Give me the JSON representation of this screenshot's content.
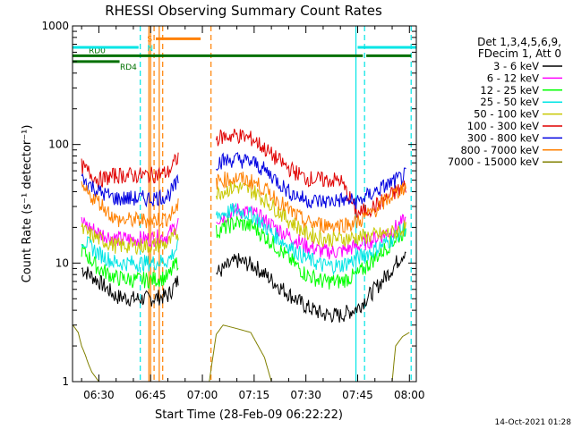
{
  "chart_data": {
    "type": "line",
    "title": "RHESSI Observing Summary Count Rates",
    "xlabel": "Start Time (28-Feb-09 06:22:22)",
    "ylabel": "Count Rate (s⁻¹ detector⁻¹)",
    "y_scale": "log",
    "ylim": [
      1,
      1000
    ],
    "xlim": [
      "06:22:22",
      "08:02:00"
    ],
    "x_ticks": [
      "06:30",
      "06:45",
      "07:00",
      "07:15",
      "07:30",
      "07:45",
      "08:00"
    ],
    "y_ticks": [
      "1",
      "10",
      "100",
      "1000"
    ],
    "timestamp": "14-Oct-2021 01:28",
    "legend": {
      "placement": "right",
      "header": [
        "Det 1,3,4,5,6,9,",
        "FDecim 1, Att 0"
      ]
    },
    "flags": [
      {
        "label": "RD0",
        "color": "#007000",
        "y": 560,
        "intervals": [
          [
            "06:22:22",
            "07:46:30"
          ],
          [
            "07:47:30",
            "08:00:30"
          ]
        ]
      },
      {
        "label": "RD4",
        "color": "#007000",
        "y": 500,
        "intervals": [
          [
            "06:22:22",
            "06:36:00"
          ]
        ]
      },
      {
        "label": "S",
        "color": "#ff8000",
        "y": 780,
        "intervals": [
          [
            "06:46:30",
            "06:59:30"
          ]
        ]
      },
      {
        "label": "N",
        "color": "#00e5e5",
        "y": 660,
        "intervals": [
          [
            "06:22:22",
            "06:41:30"
          ],
          [
            "07:45:00",
            "08:02:00"
          ]
        ]
      }
    ],
    "vertical_markers": [
      {
        "time": "06:42:00",
        "color": "#00e5e5",
        "style": "dashed"
      },
      {
        "time": "06:44:30",
        "color": "#ff8000",
        "style": "solid"
      },
      {
        "time": "06:45:00",
        "color": "#ff8000",
        "style": "solid"
      },
      {
        "time": "06:46:00",
        "color": "#ff8000",
        "style": "dashed"
      },
      {
        "time": "06:47:30",
        "color": "#ff8000",
        "style": "solid"
      },
      {
        "time": "06:48:30",
        "color": "#ff8000",
        "style": "dashed"
      },
      {
        "time": "07:02:30",
        "color": "#ff8000",
        "style": "dashed"
      },
      {
        "time": "07:44:30",
        "color": "#00e5e5",
        "style": "solid"
      },
      {
        "time": "07:47:00",
        "color": "#00e5e5",
        "style": "dashed"
      },
      {
        "time": "08:00:30",
        "color": "#00e5e5",
        "style": "dashed"
      }
    ],
    "series": [
      {
        "name": "3 - 6 keV",
        "color": "#000000",
        "x": [
          "06:25",
          "06:30",
          "06:35",
          "06:40",
          "06:45",
          "06:50",
          "06:53",
          "07:05",
          "07:10",
          "07:15",
          "07:20",
          "07:25",
          "07:30",
          "07:35",
          "07:40",
          "07:45",
          "07:50",
          "07:55",
          "07:59"
        ],
        "y": [
          9,
          7,
          5.2,
          5.0,
          5.0,
          5.3,
          7.2,
          8.5,
          10.5,
          9.5,
          7.2,
          5.5,
          4.3,
          3.7,
          3.6,
          4.2,
          6,
          9,
          13
        ]
      },
      {
        "name": "6 - 12 keV",
        "color": "#ff00ff",
        "x": [
          "06:25",
          "06:30",
          "06:35",
          "06:40",
          "06:45",
          "06:50",
          "06:53",
          "07:05",
          "07:10",
          "07:15",
          "07:20",
          "07:25",
          "07:30",
          "07:35",
          "07:40",
          "07:45",
          "07:50",
          "07:55",
          "07:59"
        ],
        "y": [
          22,
          18,
          16,
          16,
          16,
          17,
          22,
          24,
          28,
          26,
          21,
          17,
          14,
          12.5,
          12.5,
          14,
          16,
          19,
          23
        ]
      },
      {
        "name": "12 - 25 keV",
        "color": "#00ff00",
        "x": [
          "06:25",
          "06:30",
          "06:35",
          "06:40",
          "06:45",
          "06:50",
          "06:53",
          "07:05",
          "07:10",
          "07:15",
          "07:20",
          "07:25",
          "07:30",
          "07:35",
          "07:40",
          "07:45",
          "07:50",
          "07:55",
          "07:59"
        ],
        "y": [
          13,
          9,
          7.5,
          7.2,
          7.2,
          7.6,
          10.5,
          19,
          22,
          20,
          15,
          11,
          8,
          7,
          7,
          8,
          11,
          15,
          19
        ]
      },
      {
        "name": "25 - 50 keV",
        "color": "#00e5e5",
        "x": [
          "06:25",
          "06:30",
          "06:35",
          "06:40",
          "06:45",
          "06:50",
          "06:53",
          "07:05",
          "07:10",
          "07:15",
          "07:20",
          "07:25",
          "07:30",
          "07:35",
          "07:40",
          "07:45",
          "07:50",
          "07:55",
          "07:59"
        ],
        "y": [
          16,
          12,
          10,
          10,
          10,
          10.5,
          14,
          26,
          28,
          25,
          18,
          14,
          11,
          9.5,
          9.5,
          11,
          13,
          16,
          20
        ]
      },
      {
        "name": "50 - 100 keV",
        "color": "#c8c800",
        "x": [
          "06:25",
          "06:30",
          "06:35",
          "06:40",
          "06:45",
          "06:50",
          "06:53",
          "07:05",
          "07:10",
          "07:15",
          "07:20",
          "07:25",
          "07:30",
          "07:35",
          "07:40",
          "07:45",
          "07:50",
          "07:55",
          "07:59"
        ],
        "y": [
          19,
          16,
          14,
          14,
          14,
          14.5,
          18,
          40,
          44,
          40,
          31,
          23,
          18,
          16,
          16,
          16.5,
          17,
          18,
          20
        ]
      },
      {
        "name": "100 - 300 keV",
        "color": "#e00000",
        "x": [
          "06:25",
          "06:30",
          "06:35",
          "06:40",
          "06:45",
          "06:50",
          "06:53",
          "07:05",
          "07:10",
          "07:15",
          "07:20",
          "07:25",
          "07:30",
          "07:35",
          "07:40",
          "07:45",
          "07:50",
          "07:55",
          "07:59"
        ],
        "y": [
          65,
          50,
          55,
          55,
          55,
          58,
          78,
          115,
          120,
          110,
          82,
          63,
          52,
          50,
          50,
          26,
          30,
          38,
          45
        ]
      },
      {
        "name": "300 - 800 keV",
        "color": "#0000e0",
        "x": [
          "06:25",
          "06:30",
          "06:35",
          "06:40",
          "06:45",
          "06:50",
          "06:53",
          "07:05",
          "07:10",
          "07:15",
          "07:20",
          "07:25",
          "07:30",
          "07:35",
          "07:40",
          "07:45",
          "07:50",
          "07:55",
          "07:59"
        ],
        "y": [
          52,
          40,
          35,
          35,
          35,
          37,
          48,
          72,
          75,
          70,
          55,
          40,
          34,
          33,
          34,
          33,
          40,
          48,
          55
        ]
      },
      {
        "name": "800 - 7000 keV",
        "color": "#ff8000",
        "x": [
          "06:25",
          "06:30",
          "06:35",
          "06:40",
          "06:45",
          "06:50",
          "06:53",
          "07:05",
          "07:10",
          "07:15",
          "07:20",
          "07:25",
          "07:30",
          "07:35",
          "07:40",
          "07:45",
          "07:50",
          "07:55",
          "07:59"
        ],
        "y": [
          42,
          33,
          23,
          23,
          23,
          24,
          30,
          50,
          52,
          48,
          38,
          28,
          22,
          21,
          21,
          22,
          28,
          37,
          45
        ]
      },
      {
        "name": "7000 - 15000 keV",
        "color": "#808000",
        "x": [
          "06:22:30",
          "06:24",
          "06:25",
          "06:26",
          "06:27",
          "06:28",
          "06:30",
          "06:31",
          "06:47",
          "06:50",
          "06:53",
          "06:55",
          "07:02",
          "07:04",
          "07:06",
          "07:10",
          "07:14",
          "07:18",
          "07:20",
          "07:55",
          "07:56",
          "07:58",
          "08:00"
        ],
        "y": [
          3,
          2.6,
          2,
          1.7,
          1.4,
          1.2,
          1,
          1,
          1,
          1,
          1,
          1,
          1,
          2.5,
          3,
          2.8,
          2.6,
          1.6,
          1,
          1,
          2,
          2.4,
          2.6
        ]
      }
    ]
  }
}
